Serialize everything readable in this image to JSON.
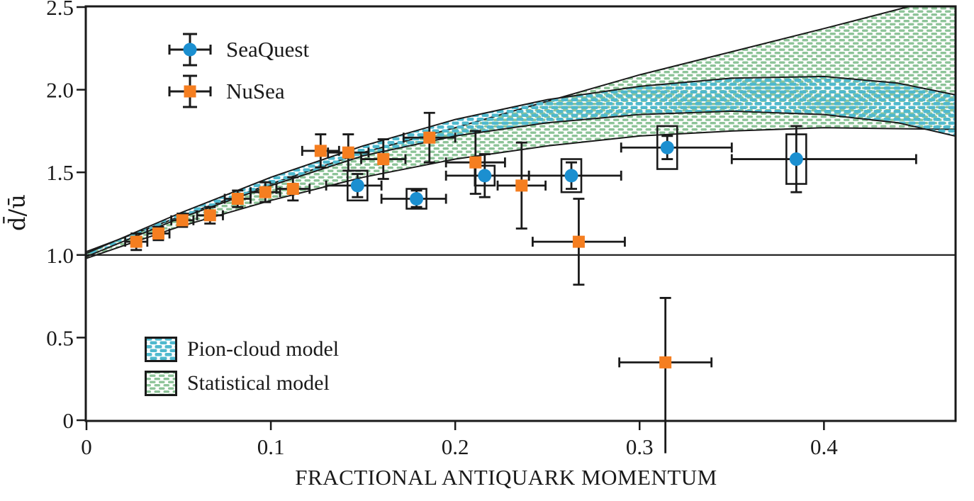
{
  "axes": {
    "xlabel": "FRACTIONAL ANTIQUARK MOMENTUM",
    "ylabel": "d̄/ū",
    "xlim": [
      0,
      0.471
    ],
    "ylim": [
      0,
      2.5
    ],
    "x_ticks": [
      {
        "v": 0,
        "label": "0"
      },
      {
        "v": 0.1,
        "label": "0.1"
      },
      {
        "v": 0.2,
        "label": "0.2"
      },
      {
        "v": 0.3,
        "label": "0.3"
      },
      {
        "v": 0.4,
        "label": "0.4"
      }
    ],
    "y_ticks": [
      {
        "v": 0,
        "label": "0"
      },
      {
        "v": 0.5,
        "label": "0.5"
      },
      {
        "v": 1.0,
        "label": "1.0"
      },
      {
        "v": 1.5,
        "label": "1.5"
      },
      {
        "v": 2.0,
        "label": "2.0"
      },
      {
        "v": 2.5,
        "label": "2.5"
      }
    ],
    "grid": false
  },
  "colors": {
    "seaquest": "#1b8fd0",
    "nusea": "#f57e20",
    "pion_hatch": "#4fb9ce",
    "stat_hatch": "#8cc397",
    "line": "#1a1a1a"
  },
  "legend_series": [
    {
      "label": "SeaQuest",
      "marker": "circle",
      "color": "#1b8fd0"
    },
    {
      "label": "NuSea",
      "marker": "square",
      "color": "#f57e20"
    }
  ],
  "legend_bands": [
    {
      "label": "Pion-cloud model",
      "hatch": "blue"
    },
    {
      "label": "Statistical model",
      "hatch": "green"
    }
  ],
  "chart_data": {
    "type": "scatter",
    "title": "",
    "xlabel": "FRACTIONAL ANTIQUARK MOMENTUM",
    "ylabel": "d̄/ū",
    "xlim": [
      0,
      0.471
    ],
    "ylim": [
      0,
      2.5
    ],
    "legend_position": [
      "upper-left",
      "lower-left"
    ],
    "reference_line_y": 1.0,
    "series": [
      {
        "name": "SeaQuest",
        "marker": "circle",
        "color": "#1b8fd0",
        "points": [
          {
            "x": 0.147,
            "y": 1.42,
            "xlo": 0.13,
            "xhi": 0.16,
            "ey": 0.07,
            "box": 0.09
          },
          {
            "x": 0.179,
            "y": 1.34,
            "xlo": 0.16,
            "xhi": 0.195,
            "ey": 0.05,
            "box": 0.06
          },
          {
            "x": 0.216,
            "y": 1.48,
            "xlo": 0.195,
            "xhi": 0.24,
            "ey": 0.13,
            "box": 0.06
          },
          {
            "x": 0.263,
            "y": 1.48,
            "xlo": 0.24,
            "xhi": 0.29,
            "ey": 0.08,
            "box": 0.1
          },
          {
            "x": 0.315,
            "y": 1.65,
            "xlo": 0.29,
            "xhi": 0.35,
            "ey": 0.07,
            "box": 0.13
          },
          {
            "x": 0.385,
            "y": 1.58,
            "xlo": 0.35,
            "xhi": 0.45,
            "ey": 0.2,
            "box": 0.15
          }
        ]
      },
      {
        "name": "NuSea",
        "marker": "square",
        "color": "#f57e20",
        "points": [
          {
            "x": 0.027,
            "y": 1.08,
            "ex": 0.006,
            "ey": 0.05
          },
          {
            "x": 0.039,
            "y": 1.13,
            "ex": 0.006,
            "ey": 0.04
          },
          {
            "x": 0.052,
            "y": 1.21,
            "ex": 0.006,
            "ey": 0.04
          },
          {
            "x": 0.067,
            "y": 1.24,
            "ex": 0.007,
            "ey": 0.05
          },
          {
            "x": 0.082,
            "y": 1.34,
            "ex": 0.007,
            "ey": 0.05
          },
          {
            "x": 0.097,
            "y": 1.38,
            "ex": 0.008,
            "ey": 0.06
          },
          {
            "x": 0.112,
            "y": 1.4,
            "ex": 0.009,
            "ey": 0.07
          },
          {
            "x": 0.127,
            "y": 1.63,
            "ex": 0.01,
            "ey": 0.1
          },
          {
            "x": 0.142,
            "y": 1.62,
            "ex": 0.011,
            "ey": 0.11
          },
          {
            "x": 0.161,
            "y": 1.58,
            "ex": 0.012,
            "ey": 0.12
          },
          {
            "x": 0.186,
            "y": 1.71,
            "ex": 0.014,
            "ey": 0.15
          },
          {
            "x": 0.211,
            "y": 1.56,
            "ex": 0.016,
            "ey": 0.19
          },
          {
            "x": 0.236,
            "y": 1.42,
            "ex": 0.013,
            "ey": 0.26
          },
          {
            "x": 0.267,
            "y": 1.08,
            "ex": 0.025,
            "ey": 0.26
          },
          {
            "x": 0.314,
            "y": 0.35,
            "ex": 0.025,
            "ey_up": 0.39,
            "ey_dn": 0.55,
            "cap_dn": false
          }
        ]
      }
    ],
    "bands": [
      {
        "name": "Statistical model",
        "hatch": "green",
        "upper": [
          [
            0,
            1.02
          ],
          [
            0.05,
            1.23
          ],
          [
            0.1,
            1.43
          ],
          [
            0.15,
            1.62
          ],
          [
            0.2,
            1.77
          ],
          [
            0.25,
            1.93
          ],
          [
            0.3,
            2.09
          ],
          [
            0.35,
            2.23
          ],
          [
            0.4,
            2.37
          ],
          [
            0.445,
            2.5
          ],
          [
            0.471,
            2.58
          ]
        ],
        "lower": [
          [
            0,
            0.98
          ],
          [
            0.05,
            1.17
          ],
          [
            0.1,
            1.33
          ],
          [
            0.15,
            1.47
          ],
          [
            0.2,
            1.58
          ],
          [
            0.25,
            1.66
          ],
          [
            0.3,
            1.72
          ],
          [
            0.35,
            1.75
          ],
          [
            0.4,
            1.77
          ],
          [
            0.471,
            1.76
          ]
        ]
      },
      {
        "name": "Pion-cloud model",
        "hatch": "blue",
        "upper": [
          [
            0,
            1.01
          ],
          [
            0.05,
            1.25
          ],
          [
            0.1,
            1.47
          ],
          [
            0.15,
            1.66
          ],
          [
            0.2,
            1.82
          ],
          [
            0.25,
            1.94
          ],
          [
            0.3,
            2.02
          ],
          [
            0.35,
            2.07
          ],
          [
            0.4,
            2.08
          ],
          [
            0.44,
            2.04
          ],
          [
            0.471,
            1.97
          ]
        ],
        "lower": [
          [
            0,
            0.99
          ],
          [
            0.05,
            1.22
          ],
          [
            0.1,
            1.42
          ],
          [
            0.15,
            1.6
          ],
          [
            0.2,
            1.72
          ],
          [
            0.25,
            1.8
          ],
          [
            0.3,
            1.85
          ],
          [
            0.35,
            1.87
          ],
          [
            0.4,
            1.85
          ],
          [
            0.44,
            1.8
          ],
          [
            0.471,
            1.72
          ]
        ]
      }
    ]
  }
}
